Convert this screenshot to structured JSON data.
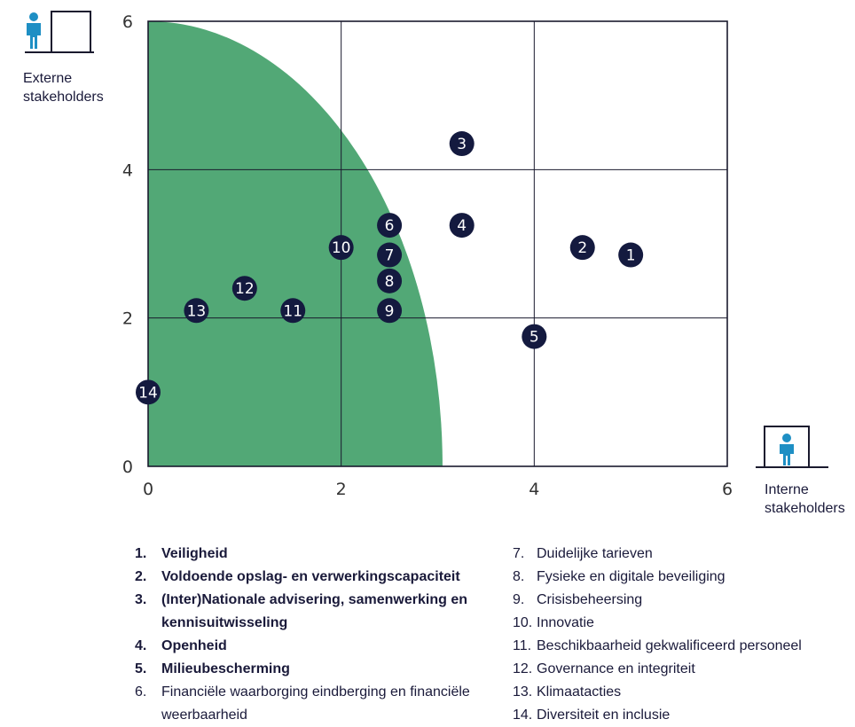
{
  "chart_data": {
    "type": "scatter",
    "xlim": [
      0,
      6
    ],
    "ylim": [
      0,
      6
    ],
    "x_ticks": [
      "0",
      "2",
      "4",
      "6"
    ],
    "y_ticks": [
      "0",
      "2",
      "4",
      "6"
    ],
    "grid": true,
    "xlabel": "Interne stakeholders",
    "ylabel": "Externe stakeholders",
    "region": {
      "shape": "quarter-ellipse",
      "rx": 3.05,
      "ry": 6,
      "color": "#52a876"
    },
    "marker_color": "#141a3f",
    "points": [
      {
        "label": "1",
        "x": 5.0,
        "y": 2.85
      },
      {
        "label": "2",
        "x": 4.5,
        "y": 2.95
      },
      {
        "label": "3",
        "x": 3.25,
        "y": 4.35
      },
      {
        "label": "4",
        "x": 3.25,
        "y": 3.25
      },
      {
        "label": "5",
        "x": 4.0,
        "y": 1.75
      },
      {
        "label": "6",
        "x": 2.5,
        "y": 3.25
      },
      {
        "label": "7",
        "x": 2.5,
        "y": 2.85
      },
      {
        "label": "8",
        "x": 2.5,
        "y": 2.5
      },
      {
        "label": "9",
        "x": 2.5,
        "y": 2.1
      },
      {
        "label": "10",
        "x": 2.0,
        "y": 2.95
      },
      {
        "label": "11",
        "x": 1.5,
        "y": 2.1
      },
      {
        "label": "12",
        "x": 1.0,
        "y": 2.4
      },
      {
        "label": "13",
        "x": 0.5,
        "y": 2.1
      },
      {
        "label": "14",
        "x": 0.0,
        "y": 1.0
      }
    ]
  },
  "icons": {
    "external": "person-standing-icon",
    "internal": "person-in-box-icon",
    "icon_color": "#1e8fc4"
  },
  "legend": {
    "left": [
      {
        "num": "1.",
        "text": "Veiligheid",
        "bold": true
      },
      {
        "num": "2.",
        "text": "Voldoende opslag- en verwerkingscapaciteit",
        "bold": true
      },
      {
        "num": "3.",
        "text": "(Inter)Nationale advisering, samenwerking en kennisuitwisseling",
        "bold": true
      },
      {
        "num": "4.",
        "text": "Openheid",
        "bold": true
      },
      {
        "num": "5.",
        "text": "Milieubescherming",
        "bold": true
      },
      {
        "num": "6.",
        "text": "Financiële waarborging eindberging en financiële weerbaarheid",
        "bold": false
      }
    ],
    "right": [
      {
        "num": "7.",
        "text": "Duidelijke tarieven"
      },
      {
        "num": "8.",
        "text": "Fysieke en digitale beveiliging"
      },
      {
        "num": "9.",
        "text": "Crisisbeheersing"
      },
      {
        "num": "10.",
        "text": "Innovatie"
      },
      {
        "num": "11.",
        "text": "Beschikbaarheid gekwalificeerd personeel"
      },
      {
        "num": "12.",
        "text": "Governance en integriteit"
      },
      {
        "num": "13.",
        "text": "Klimaatacties"
      },
      {
        "num": "14.",
        "text": "Diversiteit en inclusie"
      }
    ]
  }
}
